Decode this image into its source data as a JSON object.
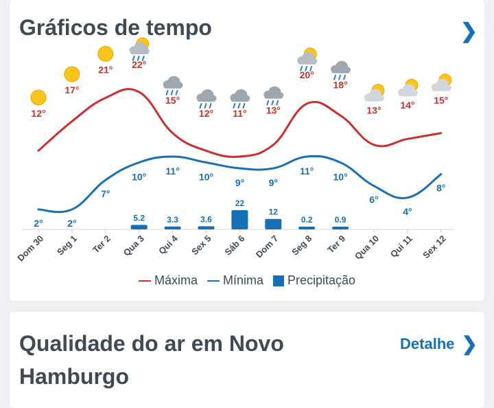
{
  "weather_card": {
    "title": "Gráficos de tempo",
    "chevron": "chevron-right-icon"
  },
  "legend": {
    "max_label": "Máxima",
    "min_label": "Mínima",
    "precip_label": "Precipitação"
  },
  "colors": {
    "max": "#c9302c",
    "min": "#1670b5",
    "precip": "#1670b5"
  },
  "chart_data": {
    "type": "line",
    "categories": [
      "Dom 30",
      "Seg 1",
      "Ter 2",
      "Qua 3",
      "Qui 4",
      "Sex 5",
      "Sáb 6",
      "Dom 7",
      "Seg 8",
      "Ter 9",
      "Qua 10",
      "Qui 11",
      "Sex 12"
    ],
    "icons": [
      "sun-icon",
      "sun-icon",
      "sun-icon",
      "partly-sunny-rain-icon",
      "rain-cloud-icon",
      "rain-cloud-icon",
      "rain-cloud-icon",
      "rain-cloud-icon",
      "partly-sunny-rain-icon",
      "rain-cloud-icon",
      "partly-cloudy-icon",
      "partly-cloudy-icon",
      "partly-cloudy-icon"
    ],
    "series": [
      {
        "name": "Máxima",
        "values": [
          12,
          17,
          21,
          22,
          15,
          12,
          11,
          13,
          20,
          18,
          13,
          14,
          15
        ],
        "labels": [
          "12°",
          "17°",
          "21°",
          "22°",
          "15°",
          "12°",
          "11°",
          "13°",
          "20°",
          "18°",
          "13°",
          "14°",
          "15°"
        ]
      },
      {
        "name": "Mínima",
        "values": [
          2,
          2,
          7,
          10,
          11,
          10,
          9,
          9,
          11,
          10,
          6,
          4,
          8
        ],
        "labels": [
          "2°",
          "2°",
          "7°",
          "10°",
          "11°",
          "10°",
          "9°",
          "9°",
          "11°",
          "10°",
          "6°",
          "4°",
          "8°"
        ]
      },
      {
        "name": "Precipitação",
        "values": [
          0,
          0,
          0,
          5.2,
          3.3,
          3.6,
          22,
          12,
          0.2,
          0.9,
          0,
          0,
          0
        ],
        "labels": [
          "",
          "",
          "",
          "5.2",
          "3.3",
          "3.6",
          "22",
          "12",
          "0.2",
          "0.9",
          "",
          "",
          ""
        ]
      }
    ]
  },
  "air_quality_card": {
    "title": "Qualidade do ar em Novo Hamburgo",
    "detail_label": "Detalhe",
    "chevron": "chevron-right-icon"
  }
}
